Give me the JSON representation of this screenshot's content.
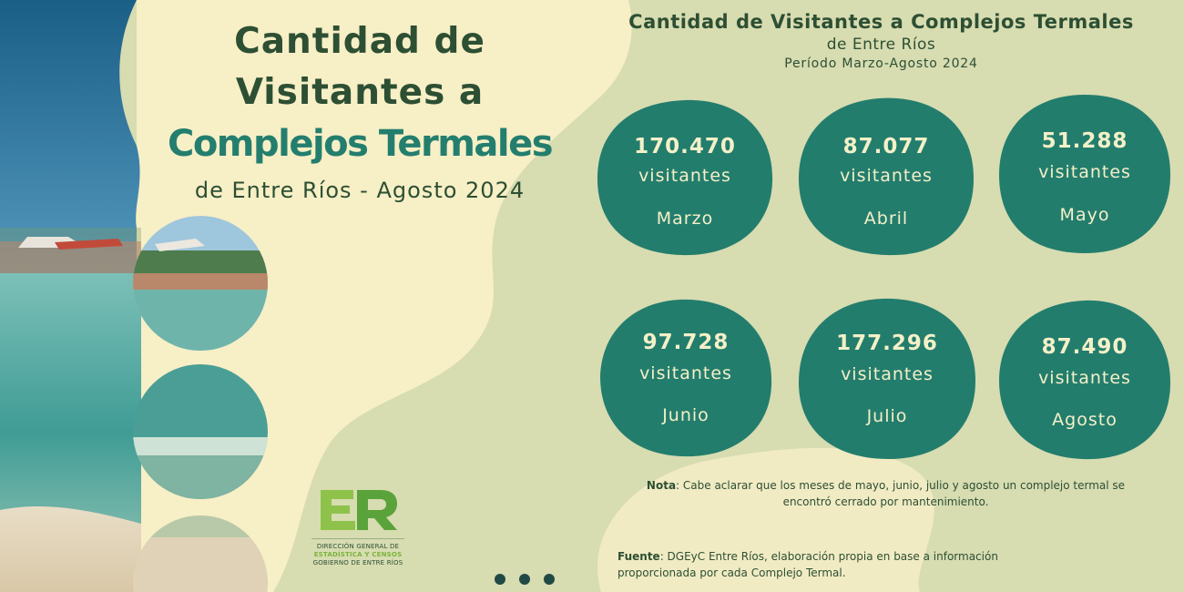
{
  "left_title": {
    "line1": "Cantidad de",
    "line2": "Visitantes a",
    "line3": "Complejos Termales",
    "line4": "de Entre Ríos - Agosto 2024"
  },
  "right_title": {
    "line1": "Cantidad de Visitantes a Complejos Termales",
    "line2": "de Entre Ríos",
    "line3": "Período Marzo-Agosto 2024"
  },
  "months": [
    {
      "value": "170.470",
      "unit": "visitantes",
      "month": "Marzo"
    },
    {
      "value": "87.077",
      "unit": "visitantes",
      "month": "Abril"
    },
    {
      "value": "51.288",
      "unit": "visitantes",
      "month": "Mayo"
    },
    {
      "value": "97.728",
      "unit": "visitantes",
      "month": "Junio"
    },
    {
      "value": "177.296",
      "unit": "visitantes",
      "month": "Julio"
    },
    {
      "value": "87.490",
      "unit": "visitantes",
      "month": "Agosto"
    }
  ],
  "note": {
    "label": "Nota",
    "text": ": Cabe aclarar que los meses de mayo, junio, julio y agosto un complejo termal se encontró cerrado por mantenimiento."
  },
  "source": {
    "label": "Fuente",
    "text": ": DGEyC Entre Ríos, elaboración propia en base a información proporcionada por cada Complejo Termal."
  },
  "logo": {
    "line1": "DIRECCIÓN GENERAL DE",
    "line2": "ESTADÍSTICA Y CENSOS",
    "line3": "GOBIERNO DE ENTRE RÍOS"
  },
  "colors": {
    "blob": "#237d6d",
    "dark_green": "#2d4f33",
    "cream": "#f7efc6",
    "sage": "#d7dcb1"
  }
}
